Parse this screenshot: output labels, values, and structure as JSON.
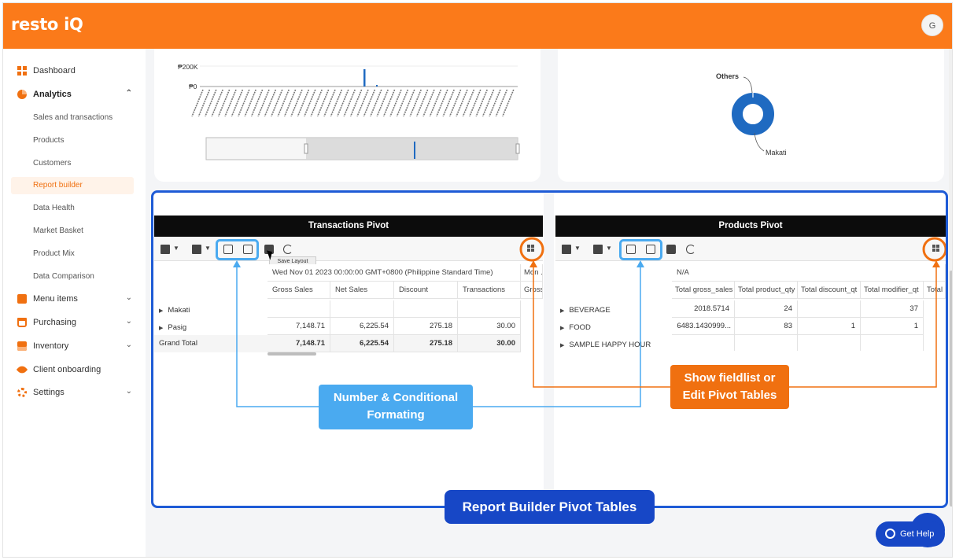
{
  "app": {
    "logo": "resto iQ",
    "avatar_initial": "G"
  },
  "sidebar": {
    "dashboard": "Dashboard",
    "analytics": "Analytics",
    "analytics_sub": [
      "Sales and transactions",
      "Products",
      "Customers",
      "Report builder",
      "Data Health",
      "Market Basket",
      "Product Mix",
      "Data Comparison"
    ],
    "menu_items": "Menu items",
    "purchasing": "Purchasing",
    "inventory": "Inventory",
    "client_onboarding": "Client onboarding",
    "settings": "Settings"
  },
  "bar_chart": {
    "y_ticks": [
      "₱200K",
      "₱0"
    ]
  },
  "donut": {
    "label_top": "Others",
    "label_bottom": "Makati"
  },
  "transactions_pivot": {
    "title": "Transactions Pivot",
    "tooltip": "Save Layout",
    "date_header": "Wed Nov 01 2023 00:00:00 GMT+0800 (Philippine Standard Time)",
    "date_header_2": "Mon ...",
    "columns": [
      "Gross Sales",
      "Net Sales",
      "Discount",
      "Transactions",
      "Gross"
    ],
    "rows": [
      {
        "label": "Makati",
        "values": [
          "",
          "",
          "",
          ""
        ]
      },
      {
        "label": "Pasig",
        "values": [
          "7,148.71",
          "6,225.54",
          "275.18",
          "30.00"
        ]
      }
    ],
    "total": {
      "label": "Grand Total",
      "values": [
        "7,148.71",
        "6,225.54",
        "275.18",
        "30.00"
      ]
    }
  },
  "products_pivot": {
    "title": "Products Pivot",
    "na": "N/A",
    "columns": [
      "Total gross_sales",
      "Total product_qty",
      "Total discount_qt",
      "Total modifier_qt",
      "Total"
    ],
    "rows": [
      {
        "label": "BEVERAGE",
        "values": [
          "2018.5714",
          "24",
          "",
          "37"
        ]
      },
      {
        "label": "FOOD",
        "values": [
          "6483.1430999...",
          "83",
          "1",
          "1"
        ]
      },
      {
        "label": "SAMPLE HAPPY HOUR",
        "values": [
          "",
          "",
          "",
          ""
        ]
      }
    ]
  },
  "annotations": {
    "number_formatting_line1": "Number  & Conditional",
    "number_formatting_line2": "Formating",
    "fieldlist_line1": "Show fieldlist or",
    "fieldlist_line2": "Edit Pivot Tables",
    "report_builder": "Report Builder Pivot Tables"
  },
  "help": {
    "label": "Get Help"
  },
  "colors": {
    "brand": "#fb7a1a",
    "frame_blue": "#1e5bd6",
    "annot_blue": "#4aaaf0",
    "annot_orange": "#f07010"
  }
}
